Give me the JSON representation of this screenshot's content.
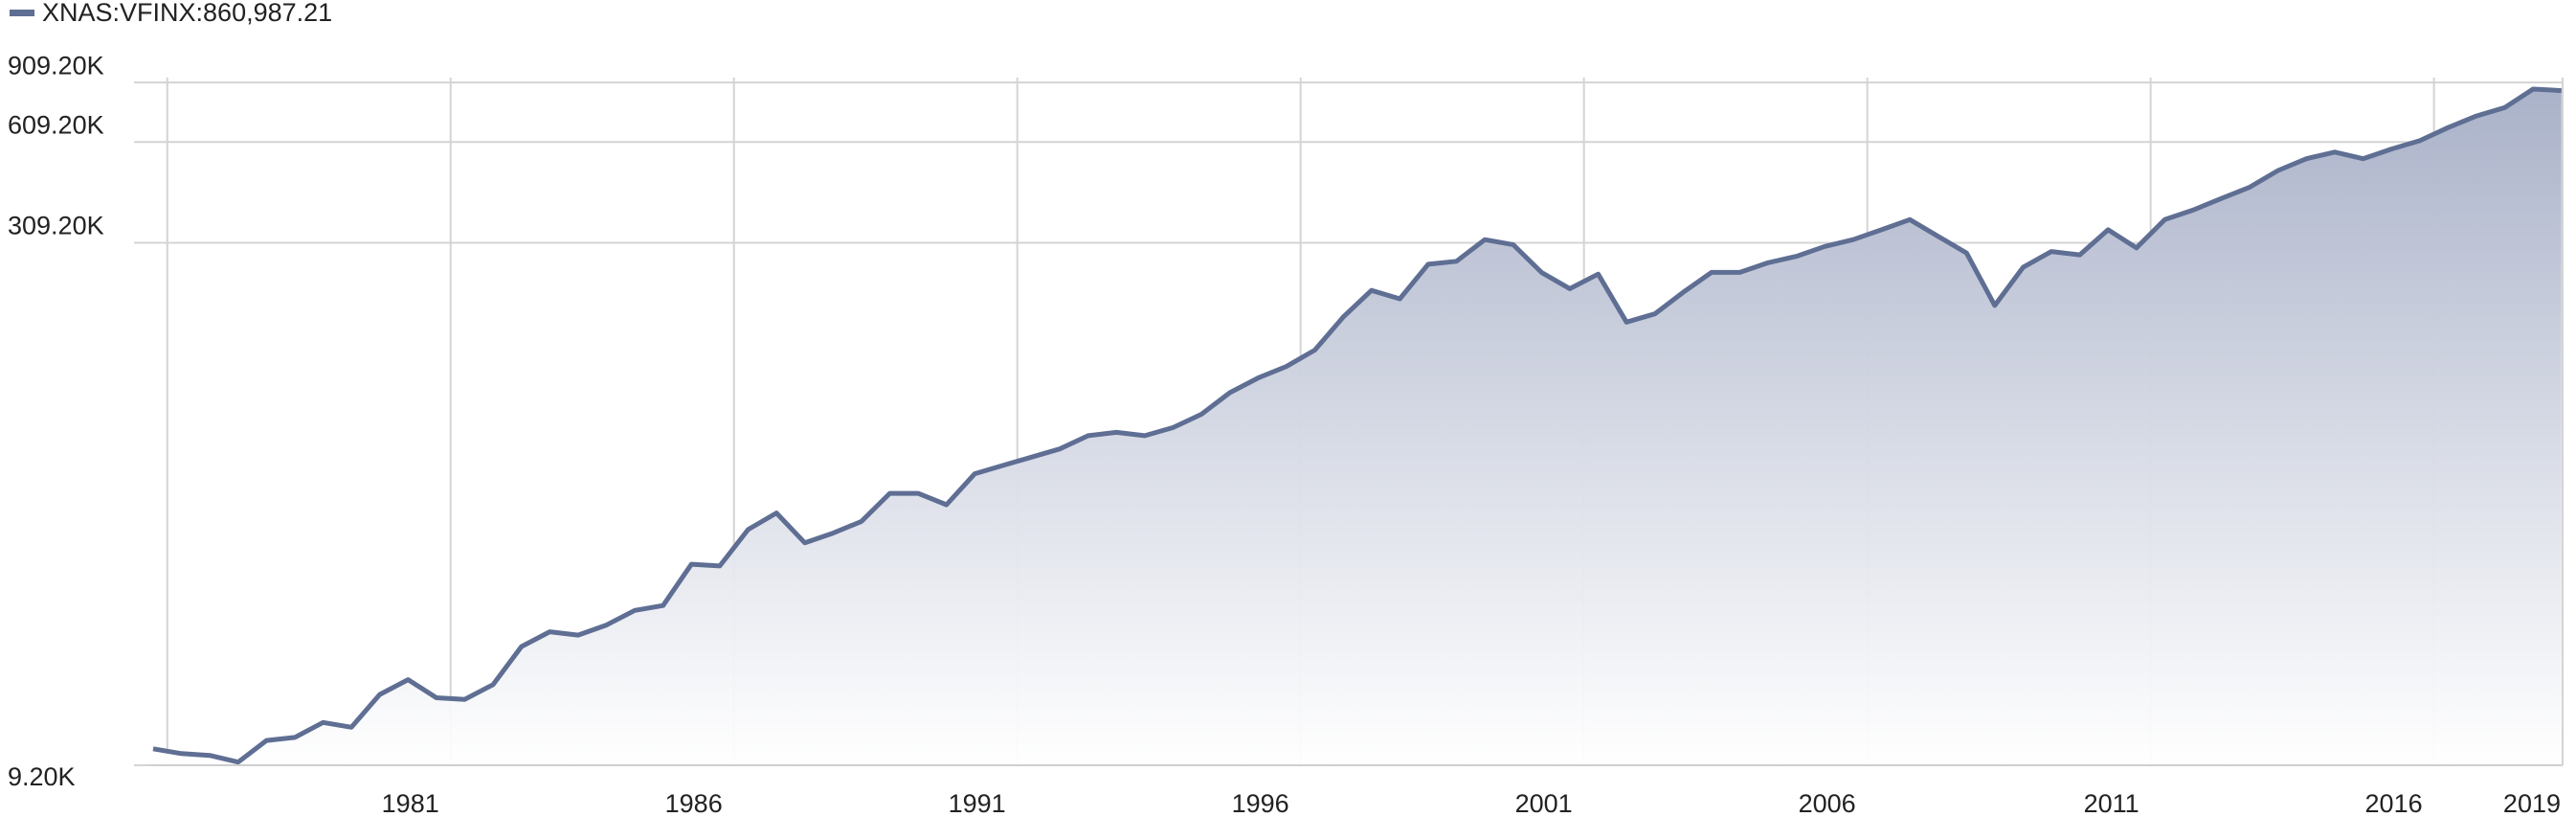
{
  "chart_data": {
    "type": "area",
    "series": [
      {
        "name": "XNAS:VFINX:860,987.21",
        "color": "#5f6e93",
        "x": [
          1975.75,
          1976.25,
          1976.75,
          1977.25,
          1977.75,
          1978.25,
          1978.75,
          1979.25,
          1979.75,
          1980.25,
          1980.75,
          1981.25,
          1981.75,
          1982.25,
          1982.75,
          1983.25,
          1983.75,
          1984.25,
          1984.75,
          1985.25,
          1985.75,
          1986.25,
          1986.75,
          1987.25,
          1987.75,
          1988.25,
          1988.75,
          1989.25,
          1989.75,
          1990.25,
          1990.75,
          1991.25,
          1991.75,
          1992.25,
          1992.75,
          1993.25,
          1993.75,
          1994.25,
          1994.75,
          1995.25,
          1995.75,
          1996.25,
          1996.75,
          1997.25,
          1997.75,
          1998.25,
          1998.75,
          1999.25,
          1999.75,
          2000.25,
          2000.75,
          2001.25,
          2001.75,
          2002.25,
          2002.75,
          2003.25,
          2003.75,
          2004.25,
          2004.75,
          2005.25,
          2005.75,
          2006.25,
          2006.75,
          2007.25,
          2007.75,
          2008.25,
          2008.75,
          2009.25,
          2009.75,
          2010.25,
          2010.75,
          2011.25,
          2011.75,
          2012.25,
          2012.75,
          2013.25,
          2013.75,
          2014.25,
          2014.75,
          2015.25,
          2015.75,
          2016.25,
          2016.75,
          2017.25,
          2017.75,
          2018.25
        ],
        "values": [
          10280,
          9950,
          9830,
          9400,
          10870,
          11100,
          12270,
          11880,
          14810,
          16370,
          14490,
          14330,
          15830,
          20440,
          22590,
          22090,
          23630,
          26080,
          26960,
          35580,
          35180,
          44940,
          50230,
          41110,
          43880,
          47470,
          57300,
          57300,
          53080,
          65400,
          69180,
          73140,
          77280,
          84460,
          86390,
          84460,
          89240,
          97610,
          112800,
          124600,
          134600,
          150300,
          187600,
          224500,
          212200,
          267700,
          273200,
          316000,
          305500,
          253400,
          227100,
          250600,
          181400,
          191800,
          221700,
          253400,
          253400,
          270500,
          282400,
          301800,
          316000,
          337600,
          361600,
          322900,
          288900,
          203000,
          262200,
          291600,
          285200,
          337600,
          299000,
          361600,
          385500,
          416800,
          449900,
          503200,
          544600,
          569500,
          544600,
          581400,
          614600,
          671600,
          725900,
          768200,
          870000,
          860987.21
        ]
      }
    ],
    "log_y": true,
    "ylim": [
      9200,
      940000
    ],
    "yticks": [
      {
        "value": 9200,
        "label": "9.20K"
      },
      {
        "value": 309200,
        "label": "309.20K"
      },
      {
        "value": 609200,
        "label": "609.20K"
      },
      {
        "value": 909200,
        "label": "909.20K"
      }
    ],
    "xlim": [
      1975.7,
      2018.27
    ],
    "xticks": [
      {
        "value": 1976,
        "label": null
      },
      1981,
      1986,
      1991,
      1996,
      2001,
      2006,
      2011,
      2016
    ],
    "end_label": "2019",
    "grid": true
  }
}
